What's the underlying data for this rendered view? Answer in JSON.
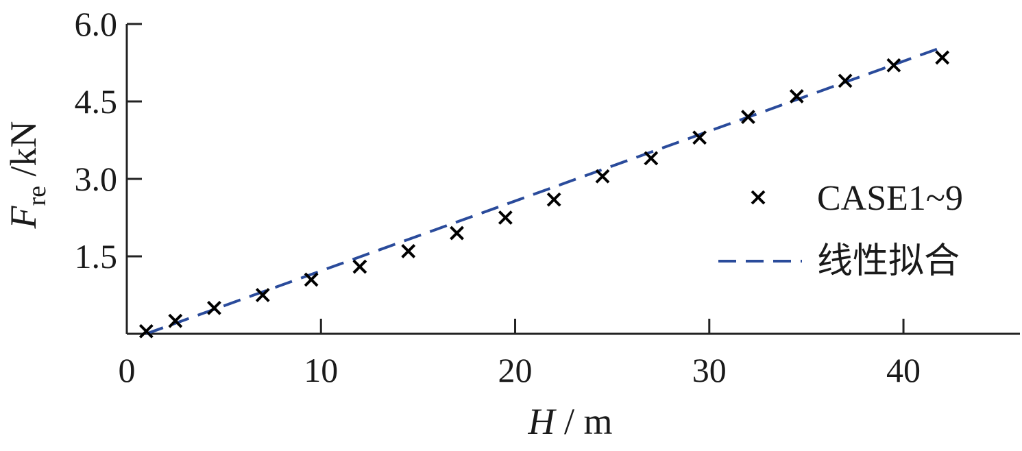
{
  "chart_data": {
    "type": "scatter",
    "title": "",
    "xlabel": {
      "var": "H",
      "unit": "m"
    },
    "ylabel": {
      "var": "F",
      "sub": "re",
      "unit": "kN"
    },
    "xlim": [
      0,
      46
    ],
    "ylim": [
      0,
      6.0
    ],
    "xticks": [
      0,
      10,
      20,
      30,
      40
    ],
    "xtick_labels": [
      "0",
      "10",
      "20",
      "30",
      "40"
    ],
    "yticks": [
      1.5,
      3.0,
      4.5,
      6.0
    ],
    "ytick_labels": [
      "1.5",
      "3.0",
      "4.5",
      "6.0"
    ],
    "grid": false,
    "legend_position": "right",
    "series": [
      {
        "name": "CASE1~9",
        "kind": "scatter",
        "marker": "x",
        "color": "#000000",
        "x": [
          1.0,
          2.5,
          4.5,
          7.0,
          9.5,
          12.0,
          14.5,
          17.0,
          19.5,
          22.0,
          24.5,
          27.0,
          29.5,
          32.0,
          34.5,
          37.0,
          39.5,
          42.0
        ],
        "y": [
          0.05,
          0.25,
          0.5,
          0.75,
          1.05,
          1.3,
          1.6,
          1.95,
          2.25,
          2.6,
          3.05,
          3.4,
          3.8,
          4.2,
          4.6,
          4.9,
          5.2,
          5.35
        ]
      },
      {
        "name": "线性拟合",
        "kind": "line",
        "dash": true,
        "color": "#2a4b9b",
        "x": [
          1.0,
          42.0
        ],
        "y": [
          0.0,
          5.55
        ]
      }
    ]
  }
}
